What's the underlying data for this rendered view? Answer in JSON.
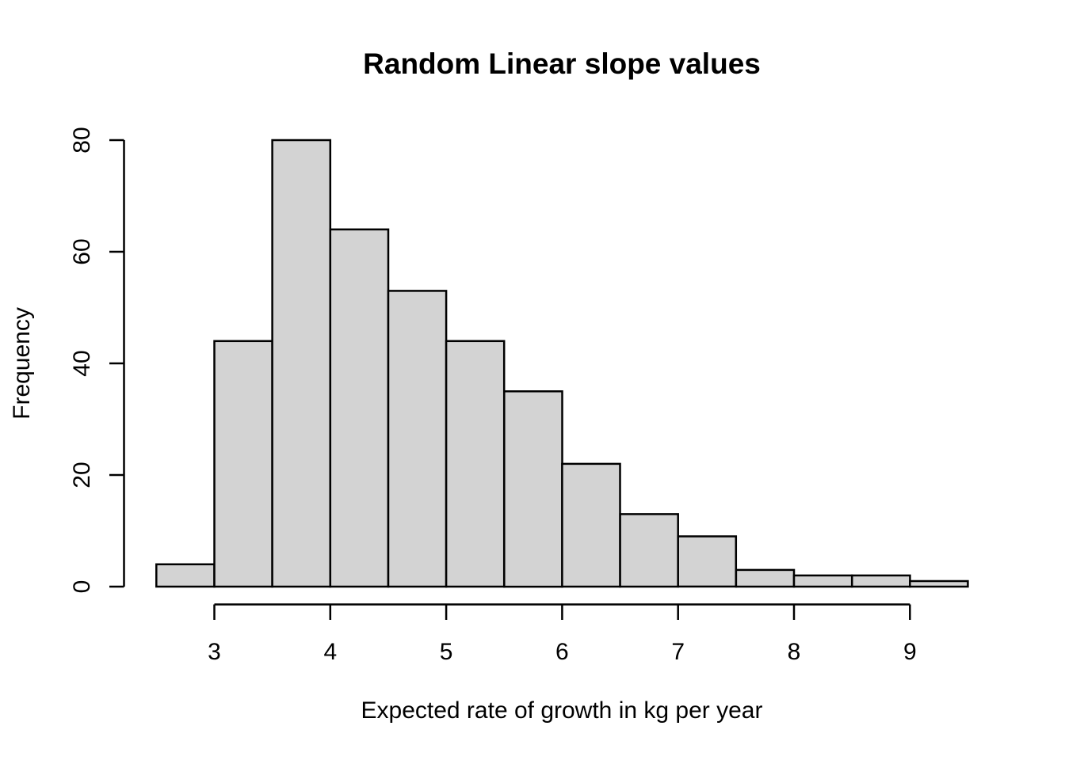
{
  "chart_data": {
    "type": "bar",
    "subtype": "histogram",
    "title": "Random Linear slope values",
    "xlabel": "Expected rate of growth in kg per year",
    "ylabel": "Frequency",
    "bin_edges": [
      2.5,
      3.0,
      3.5,
      4.0,
      4.5,
      5.0,
      5.5,
      6.0,
      6.5,
      7.0,
      7.5,
      8.0,
      8.5,
      9.0,
      9.5
    ],
    "values": [
      4,
      44,
      80,
      64,
      53,
      44,
      35,
      22,
      13,
      9,
      3,
      2,
      2,
      1
    ],
    "x_ticks": [
      3,
      4,
      5,
      6,
      7,
      8,
      9
    ],
    "y_ticks": [
      0,
      20,
      40,
      60,
      80
    ],
    "xlim": [
      2.5,
      9.5
    ],
    "ylim": [
      0,
      80
    ],
    "grid": false,
    "legend_position": "none",
    "colors": {
      "bar_fill": "#d3d3d3",
      "bar_stroke": "#000000",
      "axis": "#000000",
      "background": "#ffffff"
    }
  }
}
